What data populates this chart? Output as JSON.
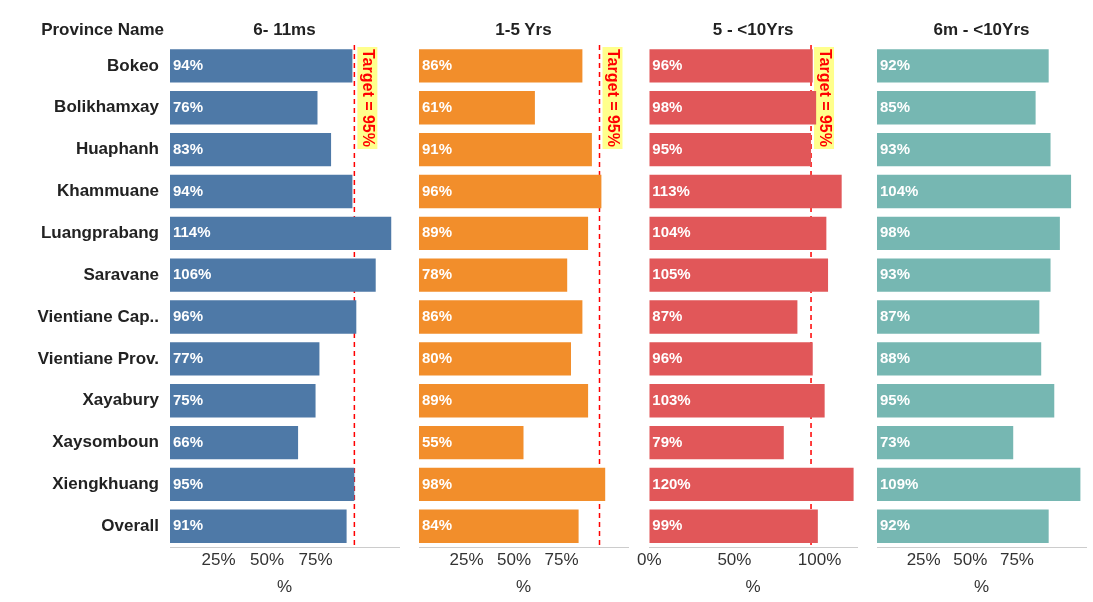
{
  "chart_data": [
    {
      "type": "bar",
      "orientation": "horizontal",
      "title": "6- 11ms",
      "ylabel": "Province Name",
      "xlabel": "%",
      "categories": [
        "Bokeo",
        "Bolikhamxay",
        "Huaphanh",
        "Khammuane",
        "Luangprabang",
        "Saravane",
        "Vientiane Cap..",
        "Vientiane Prov.",
        "Xayabury",
        "Xaysomboun",
        "Xiengkhuang",
        "Overall"
      ],
      "series": [
        {
          "color": "#4e79a7",
          "values": [
            94,
            76,
            83,
            94,
            114,
            106,
            96,
            77,
            75,
            66,
            95,
            91
          ],
          "value_labels": [
            "94%",
            "76%",
            "83%",
            "94%",
            "114%",
            "106%",
            "96%",
            "77%",
            "75%",
            "66%",
            "95%",
            "91%"
          ]
        }
      ],
      "xlim": [
        0,
        118
      ],
      "xticks": [
        {
          "value": 25,
          "label": "25%"
        },
        {
          "value": 50,
          "label": "50%"
        },
        {
          "value": 75,
          "label": "75%"
        }
      ],
      "ref_lines": [
        {
          "axis": "x",
          "value": 95,
          "label": "Target = 95%",
          "color": "#ff0000",
          "line_style": "dashed"
        }
      ],
      "grid": false,
      "legend": false
    },
    {
      "type": "bar",
      "orientation": "horizontal",
      "title": "1-5 Yrs",
      "xlabel": "%",
      "tick_labels": "x",
      "series": [
        {
          "color": "#f28e2b",
          "values": [
            86,
            61,
            91,
            96,
            89,
            78,
            86,
            80,
            89,
            55,
            98,
            84
          ],
          "value_labels": [
            "86%",
            "61%",
            "91%",
            "96%",
            "89%",
            "78%",
            "86%",
            "80%",
            "89%",
            "55%",
            "98%",
            "84%"
          ]
        }
      ],
      "xlim": [
        0,
        110
      ],
      "xticks": [
        {
          "value": 25,
          "label": "25%"
        },
        {
          "value": 50,
          "label": "50%"
        },
        {
          "value": 75,
          "label": "75%"
        }
      ],
      "ref_lines": [
        {
          "axis": "x",
          "value": 95,
          "label": "Target = 95%",
          "color": "#ff0000",
          "line_style": "dashed"
        }
      ],
      "grid": false,
      "legend": false
    },
    {
      "type": "bar",
      "orientation": "horizontal",
      "title": "5 - <10Yrs",
      "xlabel": "%",
      "tick_labels": "x",
      "series": [
        {
          "color": "#e15759",
          "values": [
            96,
            98,
            95,
            113,
            104,
            105,
            87,
            96,
            103,
            79,
            120,
            99
          ],
          "value_labels": [
            "96%",
            "98%",
            "95%",
            "113%",
            "104%",
            "105%",
            "87%",
            "96%",
            "103%",
            "79%",
            "120%",
            "99%"
          ]
        }
      ],
      "xlim": [
        0,
        122
      ],
      "xticks": [
        {
          "value": 0,
          "label": "0%"
        },
        {
          "value": 50,
          "label": "50%"
        },
        {
          "value": 100,
          "label": "100%"
        }
      ],
      "ref_lines": [
        {
          "axis": "x",
          "value": 95,
          "label": "Target = 95%",
          "color": "#ff0000",
          "line_style": "dashed"
        }
      ],
      "grid": false,
      "legend": false
    },
    {
      "type": "bar",
      "orientation": "horizontal",
      "title": "6m - <10Yrs",
      "xlabel": "%",
      "tick_labels": "x",
      "series": [
        {
          "color": "#76b7b2",
          "values": [
            92,
            85,
            93,
            104,
            98,
            93,
            87,
            88,
            95,
            73,
            109,
            92
          ],
          "value_labels": [
            "92%",
            "85%",
            "93%",
            "104%",
            "98%",
            "93%",
            "87%",
            "88%",
            "95%",
            "73%",
            "109%",
            "92%"
          ]
        }
      ],
      "xlim": [
        0,
        112
      ],
      "xticks": [
        {
          "value": 25,
          "label": "25%"
        },
        {
          "value": 50,
          "label": "50%"
        },
        {
          "value": 75,
          "label": "75%"
        }
      ],
      "grid": false,
      "legend": false
    }
  ]
}
